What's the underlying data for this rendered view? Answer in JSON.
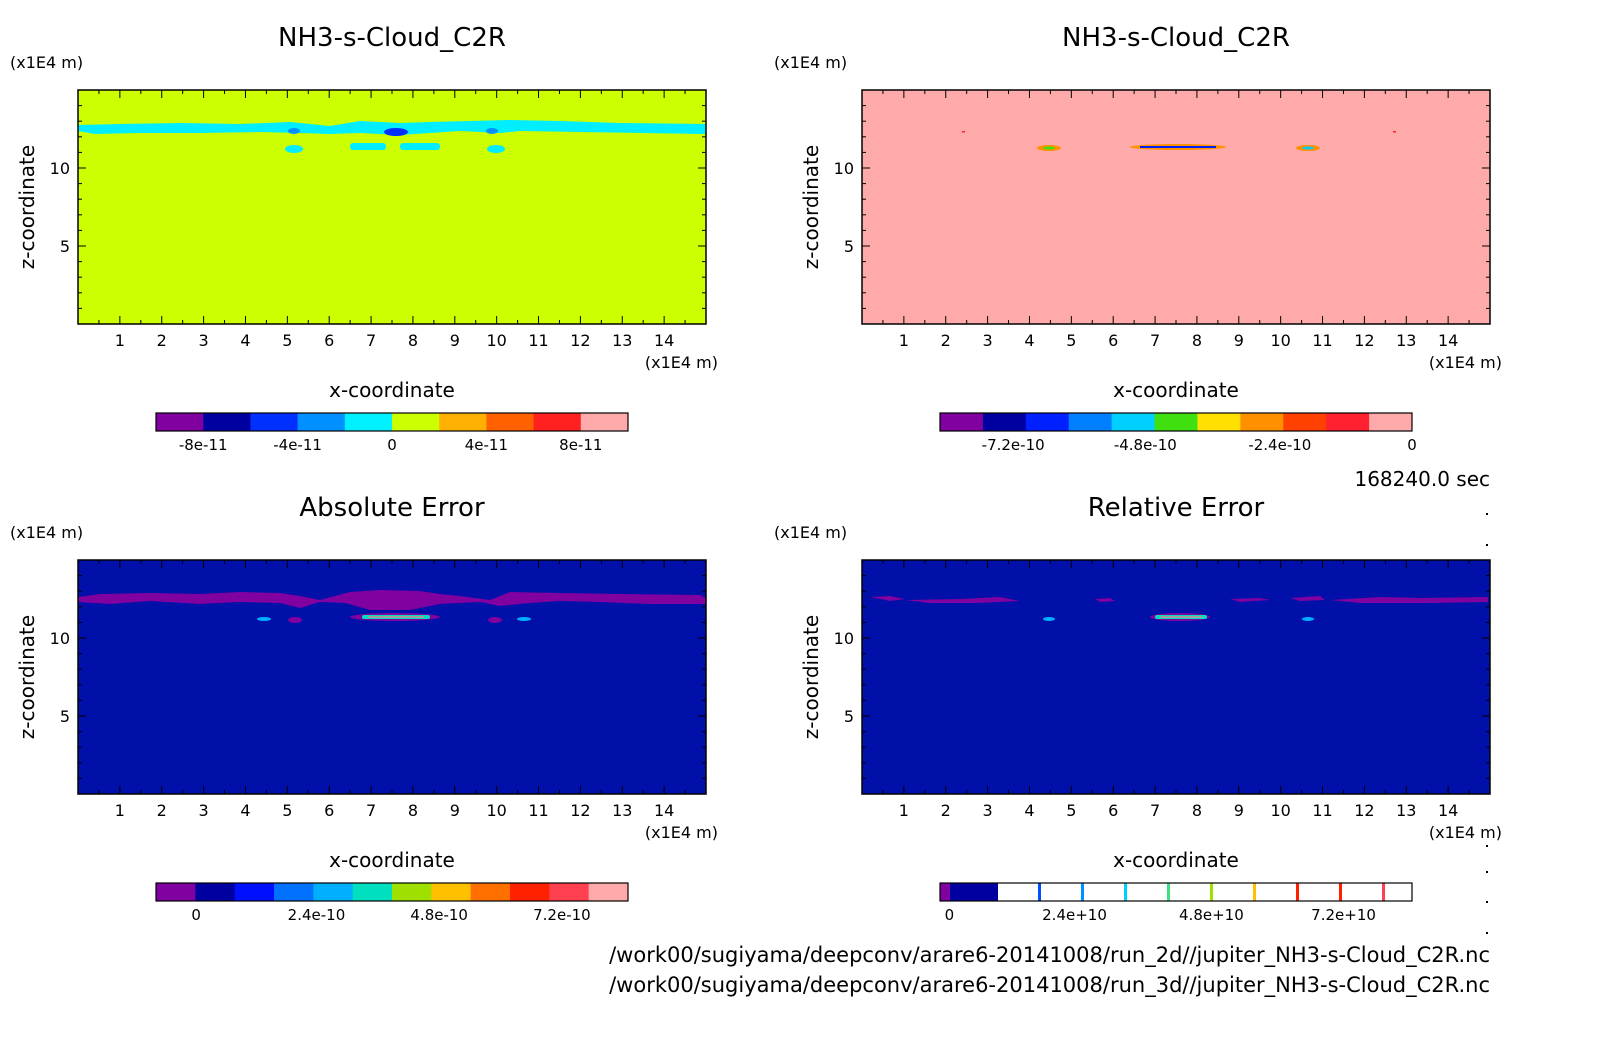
{
  "time_label": "168240.0 sec",
  "paths": [
    "/work00/sugiyama/deepconv/arare6-20141008/run_2d//jupiter_NH3-s-Cloud_C2R.nc",
    "/work00/sugiyama/deepconv/arare6-20141008/run_3d//jupiter_NH3-s-Cloud_C2R.nc"
  ],
  "chart_data": [
    {
      "type": "heatmap",
      "title": "NH3-s-Cloud_C2R",
      "xlabel": "x-coordinate",
      "ylabel": "z-coordinate",
      "x_unit": "(x1E4 m)",
      "y_unit": "(x1E4 m)",
      "xlim": [
        0,
        15
      ],
      "ylim": [
        0,
        15
      ],
      "xticks": [
        "1",
        "2",
        "3",
        "4",
        "5",
        "6",
        "7",
        "8",
        "9",
        "10",
        "11",
        "12",
        "13",
        "14"
      ],
      "yticks": [
        "5",
        "10"
      ],
      "background_color": "#ccff00",
      "colorbar": {
        "colors": [
          "#8000a0",
          "#0000a0",
          "#0030ff",
          "#0090ff",
          "#00f0ff",
          "#ccff00",
          "#ffb000",
          "#ff6000",
          "#ff2020",
          "#ffaaaa"
        ],
        "labels": [
          "-8e-11",
          "-4e-11",
          "0",
          "4e-11",
          "8e-11"
        ],
        "label_positions": [
          0.1,
          0.3,
          0.5,
          0.7,
          0.9
        ]
      }
    },
    {
      "type": "heatmap",
      "title": "NH3-s-Cloud_C2R",
      "xlabel": "x-coordinate",
      "ylabel": "z-coordinate",
      "x_unit": "(x1E4 m)",
      "y_unit": "(x1E4 m)",
      "xlim": [
        0,
        15
      ],
      "ylim": [
        0,
        15
      ],
      "xticks": [
        "1",
        "2",
        "3",
        "4",
        "5",
        "6",
        "7",
        "8",
        "9",
        "10",
        "11",
        "12",
        "13",
        "14"
      ],
      "yticks": [
        "5",
        "10"
      ],
      "background_color": "#ffaaaa",
      "colorbar": {
        "colors": [
          "#8000a0",
          "#0000a0",
          "#0020ff",
          "#0080ff",
          "#00d0ff",
          "#40e010",
          "#ffe000",
          "#ff9000",
          "#ff4000",
          "#ff2030",
          "#ffaaaa"
        ],
        "labels": [
          "-7.2e-10",
          "-4.8e-10",
          "-2.4e-10",
          "0"
        ],
        "label_positions": [
          0.155,
          0.435,
          0.72,
          1.0
        ]
      }
    },
    {
      "type": "heatmap",
      "title": "Absolute Error",
      "xlabel": "x-coordinate",
      "ylabel": "z-coordinate",
      "x_unit": "(x1E4 m)",
      "y_unit": "(x1E4 m)",
      "xlim": [
        0,
        15
      ],
      "ylim": [
        0,
        15
      ],
      "xticks": [
        "1",
        "2",
        "3",
        "4",
        "5",
        "6",
        "7",
        "8",
        "9",
        "10",
        "11",
        "12",
        "13",
        "14"
      ],
      "yticks": [
        "5",
        "10"
      ],
      "background_color": "#0010a8",
      "colorbar": {
        "colors": [
          "#8000a0",
          "#0000a0",
          "#0010ff",
          "#0070ff",
          "#00b0ff",
          "#00e0c0",
          "#a0e000",
          "#ffc000",
          "#ff7000",
          "#ff2000",
          "#ff4050",
          "#ffaaaa"
        ],
        "labels": [
          "0",
          "2.4e-10",
          "4.8e-10",
          "7.2e-10"
        ],
        "label_positions": [
          0.085,
          0.34,
          0.6,
          0.86
        ]
      }
    },
    {
      "type": "heatmap",
      "title": "Relative Error",
      "xlabel": "x-coordinate",
      "ylabel": "z-coordinate",
      "x_unit": "(x1E4 m)",
      "y_unit": "(x1E4 m)",
      "xlim": [
        0,
        15
      ],
      "ylim": [
        0,
        15
      ],
      "xticks": [
        "1",
        "2",
        "3",
        "4",
        "5",
        "6",
        "7",
        "8",
        "9",
        "10",
        "11",
        "12",
        "13",
        "14"
      ],
      "yticks": [
        "5",
        "10"
      ],
      "background_color": "#0010a8",
      "colorbar": {
        "colors": [
          "#8000a0",
          "#0000a0"
        ],
        "labels": [
          "0",
          "2.4e+10",
          "4.8e+10",
          "7.2e+10"
        ],
        "label_positions": [
          0.02,
          0.285,
          0.575,
          0.855
        ]
      }
    }
  ]
}
